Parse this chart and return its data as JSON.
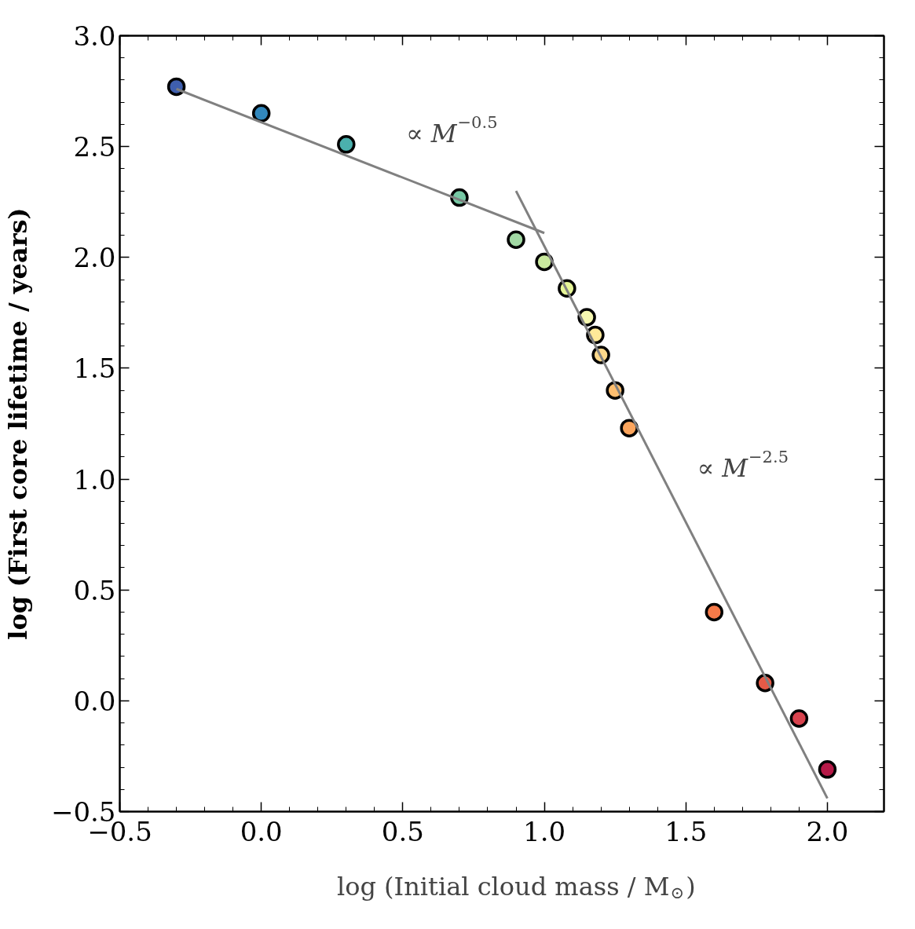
{
  "chart_data": {
    "type": "scatter",
    "xlabel": "log (Initial cloud mass / M$_{⊙}$)",
    "ylabel": "log (First core lifetime / years)",
    "series": [
      {
        "marker": "circle",
        "x": [
          -0.3,
          0.0,
          0.3,
          0.7,
          0.9,
          1.0,
          1.08,
          1.15,
          1.18,
          1.2,
          1.25,
          1.3,
          1.6,
          1.78,
          1.9,
          2.0
        ],
        "values": [
          2.77,
          2.65,
          2.51,
          2.27,
          2.08,
          1.98,
          1.86,
          1.73,
          1.65,
          1.56,
          1.4,
          1.23,
          0.4,
          0.08,
          -0.08,
          -0.31
        ],
        "colors": [
          "#3f5fae",
          "#3288bd",
          "#4bb0ad",
          "#76c8a4",
          "#a2d9a4",
          "#c9e99e",
          "#e6f598",
          "#f5f7b0",
          "#fee999",
          "#fed98b",
          "#fdbe70",
          "#fca55d",
          "#f67a49",
          "#e55a47",
          "#d8434e",
          "#b61a48"
        ]
      },
      {
        "type": "line",
        "color": "#808080",
        "x": [
          -0.3,
          1.0
        ],
        "values": [
          2.76,
          2.11
        ]
      },
      {
        "type": "line",
        "color": "#808080",
        "x": [
          0.9,
          2.0
        ],
        "values": [
          2.3,
          -0.44
        ]
      }
    ],
    "xlim": [
      -0.5,
      2.2
    ],
    "ylim": [
      -0.5,
      3.0
    ],
    "xticks": [
      {
        "value": -0.5,
        "label": "−0.5"
      },
      {
        "value": 0,
        "label": "0.0"
      },
      {
        "value": 0.5,
        "label": "0.5"
      },
      {
        "value": 1,
        "label": "1.0"
      },
      {
        "value": 1.5,
        "label": "1.5"
      },
      {
        "value": 2,
        "label": "2.0"
      }
    ],
    "yticks": [
      {
        "value": -0.5,
        "label": "−0.5"
      },
      {
        "value": 0,
        "label": "0.0"
      },
      {
        "value": 0.5,
        "label": "0.5"
      },
      {
        "value": 1,
        "label": "1.0"
      },
      {
        "value": 1.5,
        "label": "1.5"
      },
      {
        "value": 2,
        "label": "2.0"
      },
      {
        "value": 2.5,
        "label": "2.5"
      },
      {
        "value": 3,
        "label": "3.0"
      }
    ],
    "grid": false,
    "annotations": [
      "∝ M$^{−0.5}$",
      "∝ M$^{−2.5}$"
    ]
  }
}
